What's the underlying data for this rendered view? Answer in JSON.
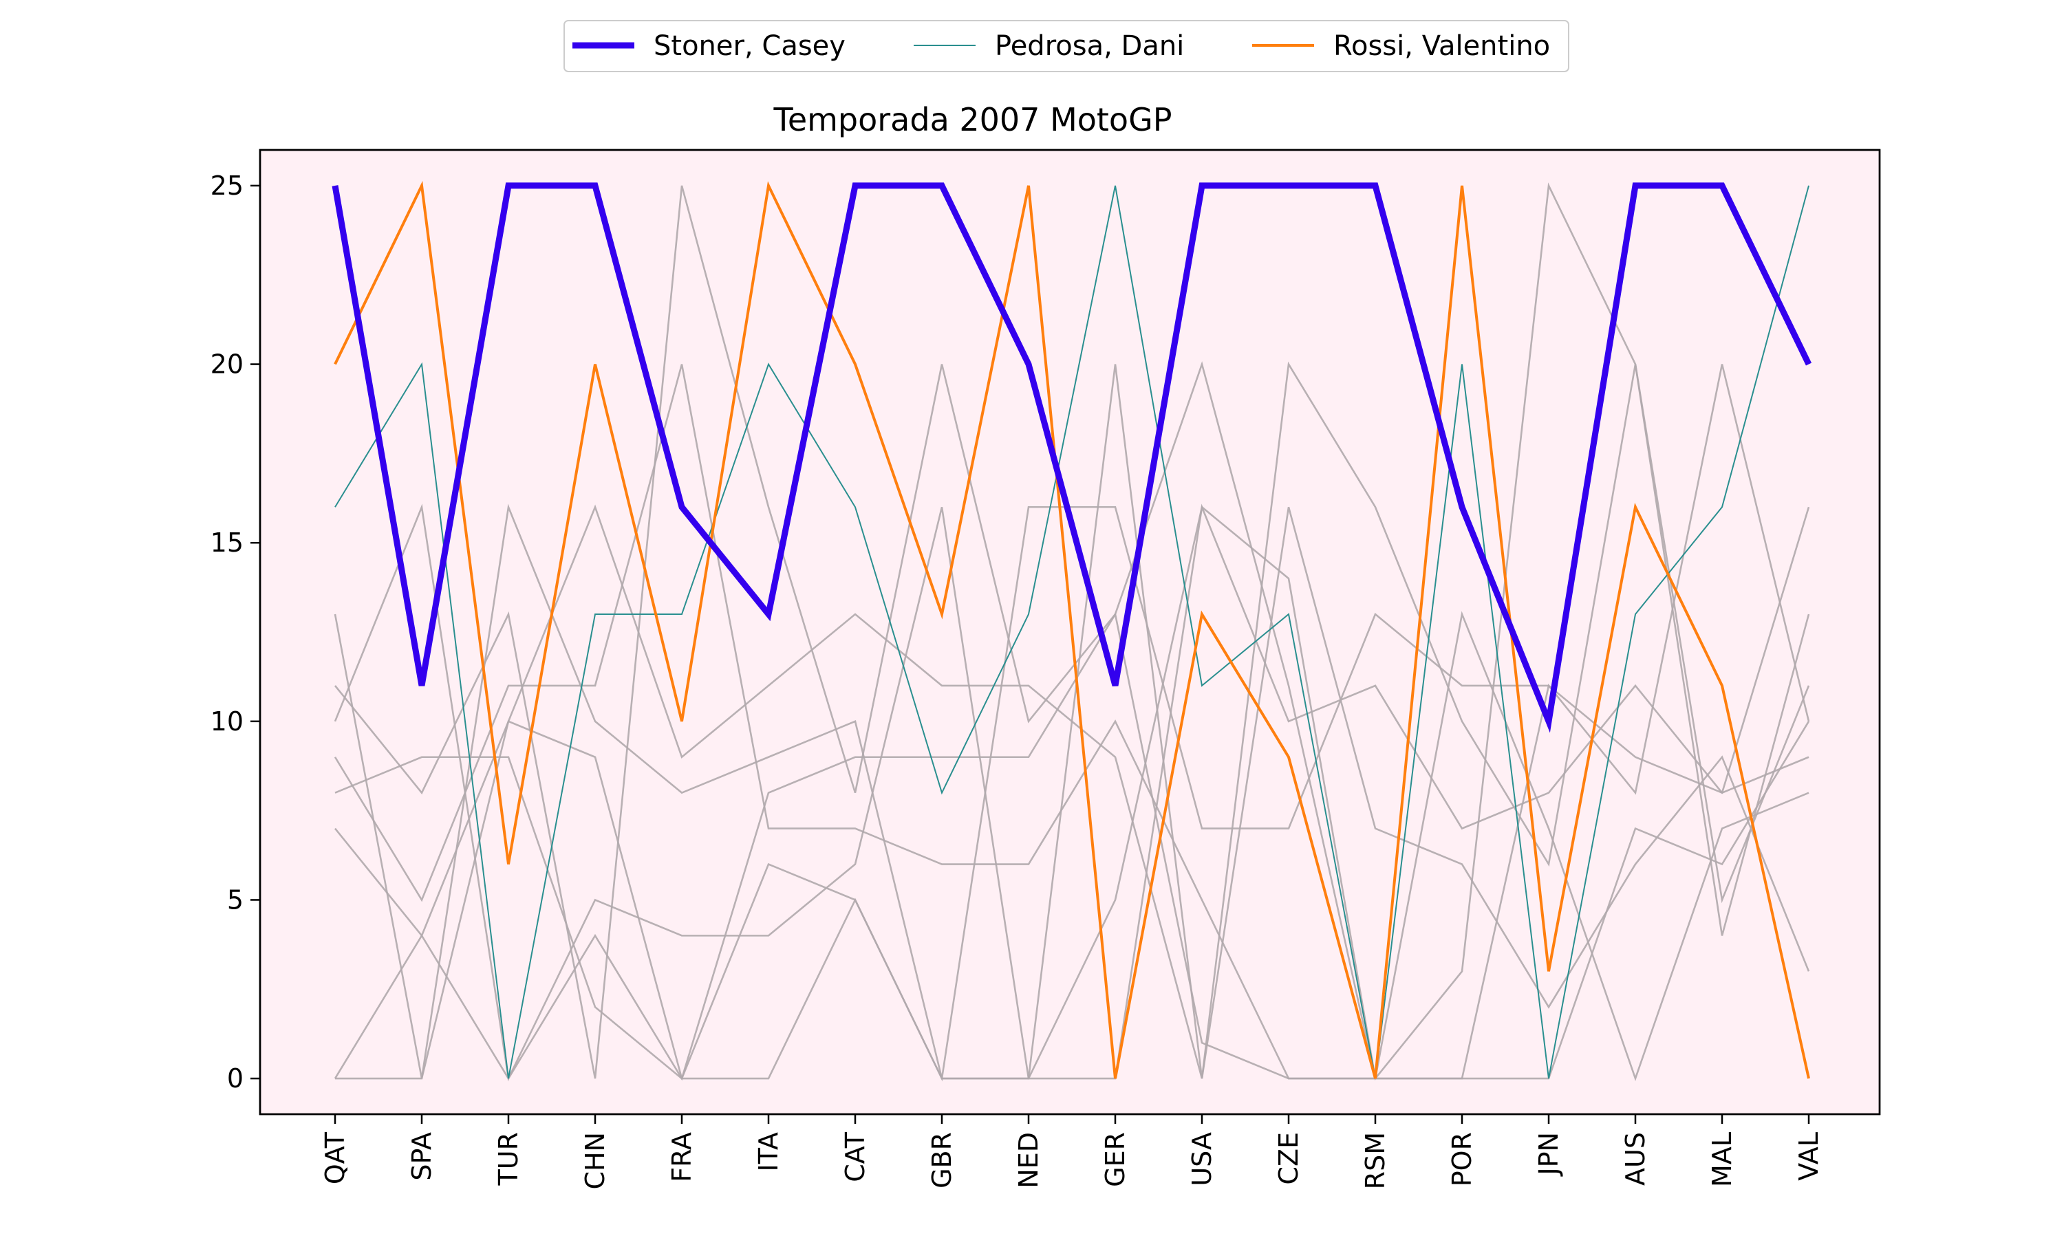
{
  "chart_data": {
    "type": "line",
    "title": "Temporada 2007 MotoGP",
    "xlabel": "",
    "ylabel": "",
    "categories": [
      "QAT",
      "SPA",
      "TUR",
      "CHN",
      "FRA",
      "ITA",
      "CAT",
      "GBR",
      "NED",
      "GER",
      "USA",
      "CZE",
      "RSM",
      "POR",
      "JPN",
      "AUS",
      "MAL",
      "VAL"
    ],
    "ylim": [
      -1,
      26
    ],
    "yticks": [
      0,
      5,
      10,
      15,
      20,
      25
    ],
    "grid": false,
    "legend_placement": "top-center",
    "plot_background": "#fff0f5",
    "series": [
      {
        "name": "Stoner, Casey",
        "color": "#3300ee",
        "emphasis": "thick",
        "values": [
          25,
          11,
          25,
          25,
          16,
          13,
          25,
          25,
          20,
          11,
          25,
          25,
          25,
          16,
          10,
          25,
          25,
          20
        ]
      },
      {
        "name": "Pedrosa, Dani",
        "color": "#2a8f8f",
        "emphasis": "thin",
        "values": [
          16,
          20,
          0,
          13,
          13,
          20,
          16,
          8,
          13,
          25,
          11,
          13,
          0,
          20,
          0,
          13,
          16,
          25
        ]
      },
      {
        "name": "Rossi, Valentino",
        "color": "#ff7f0e",
        "emphasis": "medium",
        "values": [
          20,
          25,
          6,
          20,
          10,
          25,
          20,
          13,
          25,
          0,
          13,
          9,
          0,
          25,
          3,
          16,
          11,
          0
        ]
      }
    ],
    "other_series_color": "#b0a8ac",
    "other_series": [
      {
        "values": [
          13,
          0,
          16,
          10,
          8,
          9,
          10,
          0,
          0,
          20,
          0,
          20,
          16,
          10,
          6,
          20,
          4,
          13
        ]
      },
      {
        "values": [
          11,
          8,
          13,
          0,
          25,
          16,
          8,
          20,
          10,
          13,
          20,
          11,
          0,
          3,
          25,
          20,
          5,
          11
        ]
      },
      {
        "values": [
          10,
          16,
          0,
          5,
          4,
          4,
          6,
          16,
          0,
          0,
          16,
          10,
          11,
          7,
          8,
          11,
          8,
          9
        ]
      },
      {
        "values": [
          9,
          5,
          11,
          11,
          20,
          7,
          7,
          6,
          6,
          10,
          5,
          0,
          0,
          0,
          11,
          8,
          20,
          10
        ]
      },
      {
        "values": [
          8,
          9,
          9,
          2,
          0,
          6,
          5,
          0,
          16,
          16,
          7,
          7,
          13,
          11,
          11,
          9,
          8,
          16
        ]
      },
      {
        "values": [
          7,
          4,
          10,
          16,
          9,
          11,
          13,
          11,
          11,
          9,
          0,
          16,
          7,
          6,
          2,
          6,
          9,
          3
        ]
      },
      {
        "values": [
          0,
          4,
          0,
          4,
          0,
          8,
          9,
          9,
          9,
          13,
          1,
          0,
          0,
          0,
          0,
          7,
          6,
          10
        ]
      },
      {
        "values": [
          0,
          0,
          10,
          9,
          0,
          0,
          5,
          0,
          0,
          5,
          16,
          14,
          0,
          13,
          7,
          0,
          7,
          8
        ]
      }
    ]
  }
}
